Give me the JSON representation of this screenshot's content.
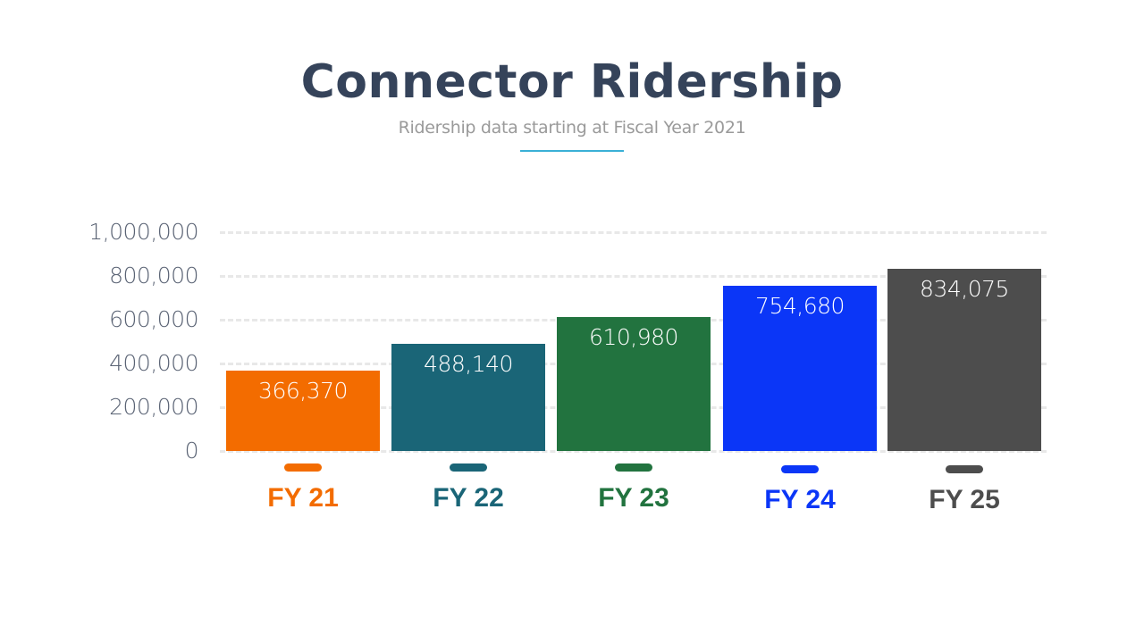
{
  "header": {
    "title": "Connector Ridership",
    "subtitle": "Ridership data starting at Fiscal Year 2021",
    "accent_color": "#3ab0d6"
  },
  "chart_data": {
    "type": "bar",
    "title": "Connector Ridership",
    "subtitle": "Ridership data starting at Fiscal Year 2021",
    "xlabel": "",
    "ylabel": "",
    "categories": [
      "FY 21",
      "FY 22",
      "FY 23",
      "FY 24",
      "FY 25"
    ],
    "values": [
      366370,
      488140,
      610980,
      754680,
      834075
    ],
    "value_labels": [
      "366,370",
      "488,140",
      "610,980",
      "754,680",
      "834,075"
    ],
    "colors": [
      "#f36c00",
      "#1a6577",
      "#22733f",
      "#0b36f7",
      "#4d4d4d"
    ],
    "ylim": [
      0,
      1000000
    ],
    "yticks": [
      0,
      200000,
      400000,
      600000,
      800000,
      1000000
    ],
    "ytick_labels": [
      "0",
      "200,000",
      "400,000",
      "600,000",
      "800,000",
      "1,000,000"
    ],
    "grid": true,
    "grid_style": "dashed",
    "legend": "none"
  }
}
